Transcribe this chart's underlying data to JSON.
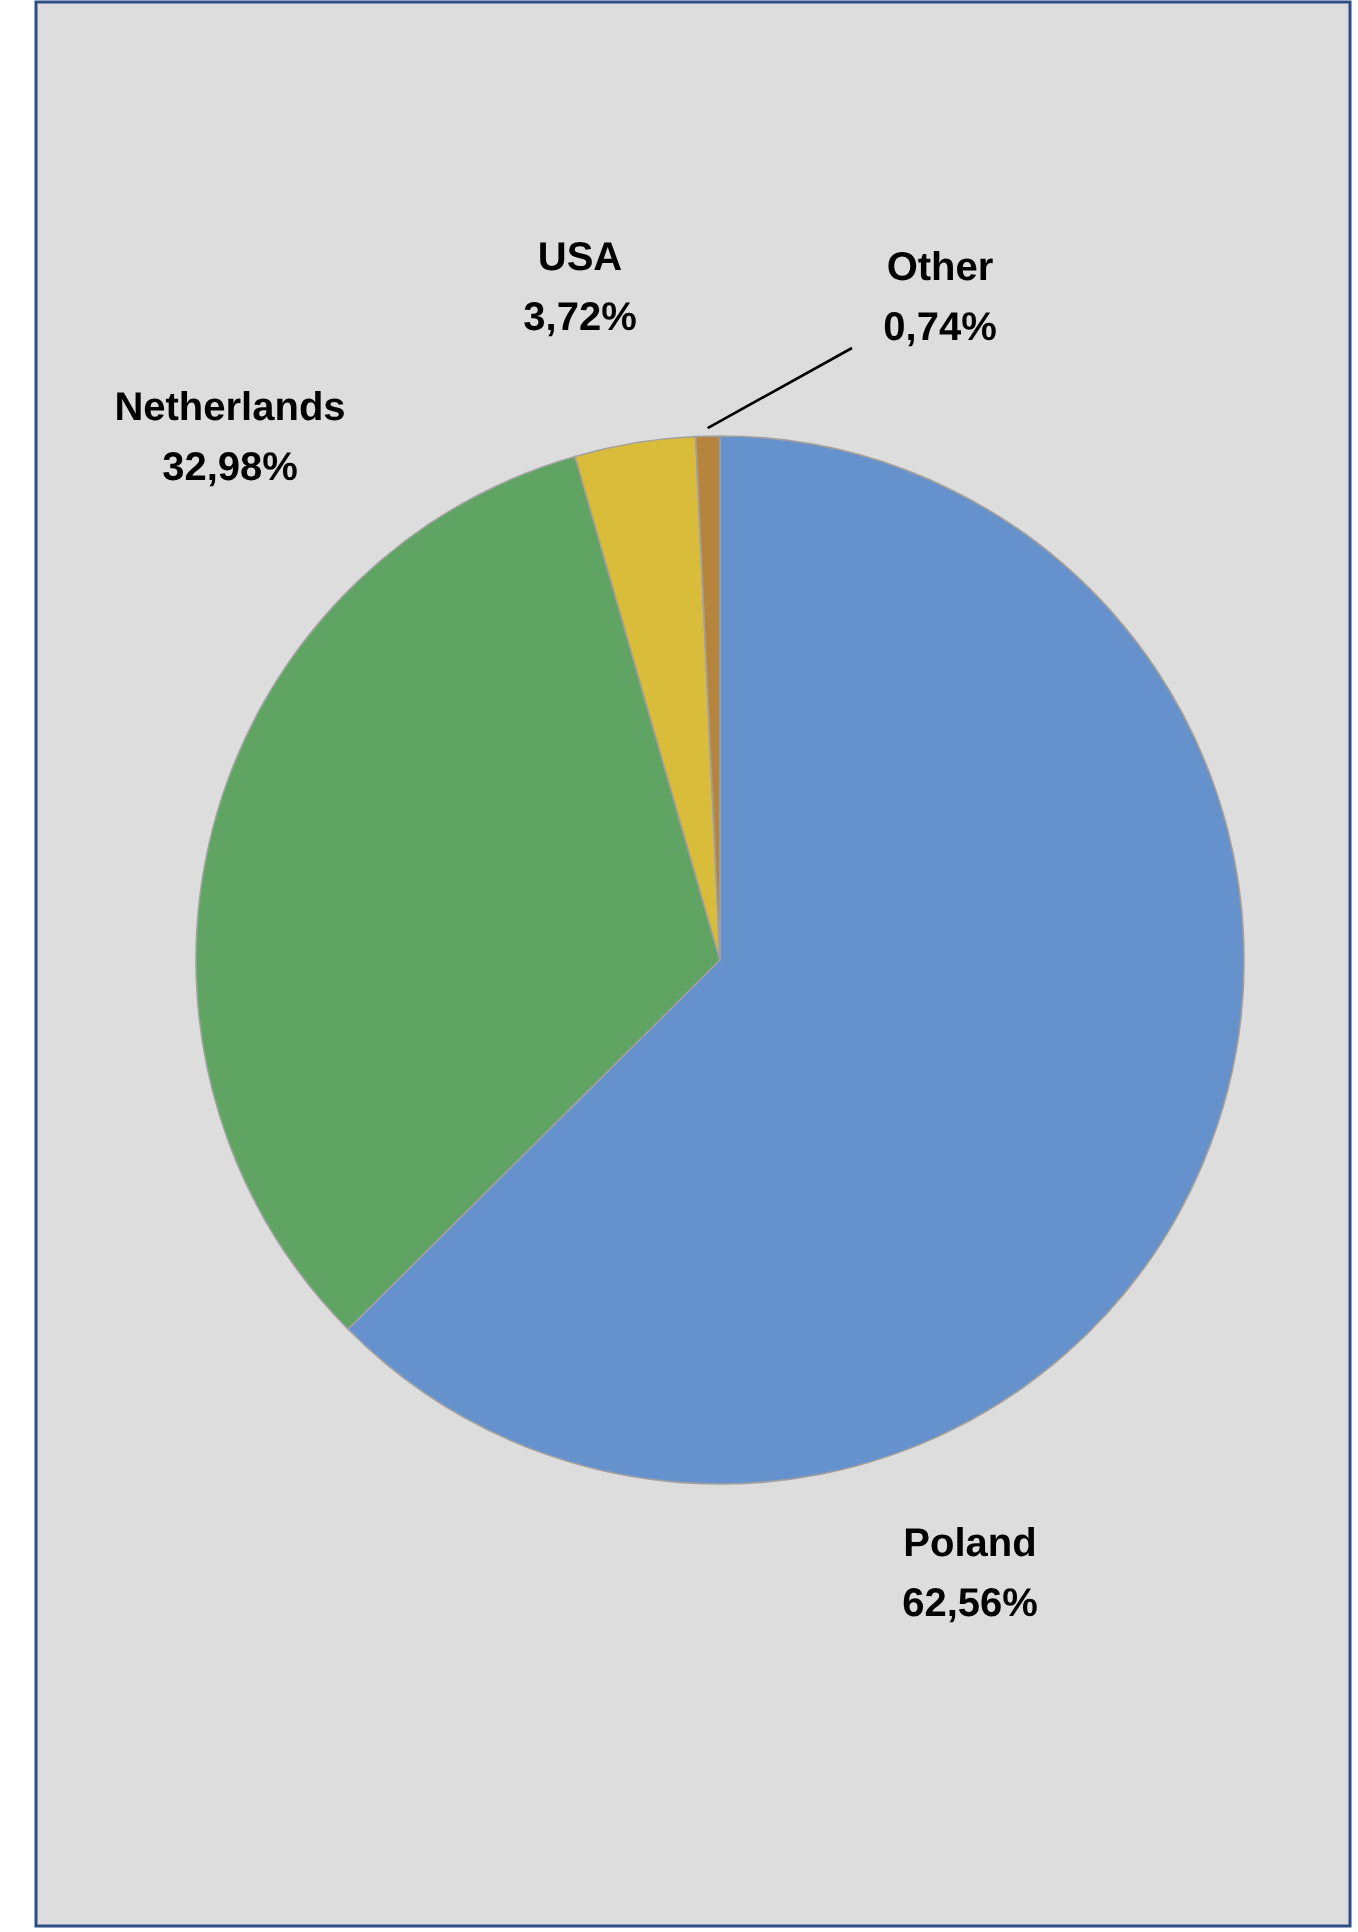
{
  "chart_data": {
    "type": "pie",
    "categories": [
      "Poland",
      "Netherlands",
      "USA",
      "Other"
    ],
    "values": [
      62.56,
      32.98,
      3.72,
      0.74
    ],
    "colors": [
      "#6591cd",
      "#5fa463",
      "#d8bc3a",
      "#b5853e"
    ],
    "value_labels": [
      "62,56%",
      "32,98%",
      "3,72%",
      "0,74%"
    ]
  }
}
